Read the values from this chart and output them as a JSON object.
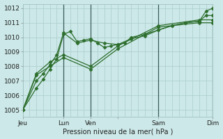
{
  "background_color": "#cce8e8",
  "grid_color": "#aacccc",
  "line_color": "#2d6e2d",
  "marker": "D",
  "marker_size": 2.5,
  "title": "Pression niveau de la mer( hPa )",
  "ylim": [
    1004.5,
    1012.3
  ],
  "yticks": [
    1005,
    1006,
    1007,
    1008,
    1009,
    1010,
    1011,
    1012
  ],
  "xtick_positions": [
    0,
    36,
    60,
    84,
    120,
    168
  ],
  "xtick_labels": [
    "Jeu",
    "Lun",
    "Ven",
    "",
    "Sam",
    "Dim"
  ],
  "vline_color": "#3a5a5a",
  "vline_positions": [
    36,
    60,
    120,
    168
  ],
  "series": [
    [
      [
        0,
        12,
        18,
        24,
        30,
        36,
        42,
        48,
        54,
        60,
        66,
        72,
        78,
        84,
        90,
        96,
        108,
        120,
        132,
        144,
        156,
        162,
        168
      ],
      [
        1005.0,
        1006.5,
        1007.1,
        1007.8,
        1008.5,
        1010.2,
        1010.4,
        1009.7,
        1009.8,
        1009.9,
        1009.6,
        1009.3,
        1009.4,
        1009.5,
        1009.6,
        1010.0,
        1010.2,
        1010.5,
        1010.8,
        1011.0,
        1011.1,
        1011.8,
        1012.0
      ]
    ],
    [
      [
        0,
        12,
        18,
        24,
        30,
        36,
        48,
        60,
        72,
        84,
        96,
        108,
        120,
        132,
        144,
        156,
        162,
        168
      ],
      [
        1005.0,
        1007.0,
        1007.5,
        1008.1,
        1008.8,
        1010.3,
        1009.6,
        1009.8,
        1009.6,
        1009.5,
        1009.9,
        1010.1,
        1010.5,
        1010.8,
        1011.0,
        1011.1,
        1011.5,
        1011.5
      ]
    ],
    [
      [
        0,
        12,
        24,
        36,
        60,
        84,
        120,
        156,
        168
      ],
      [
        1005.0,
        1007.5,
        1008.3,
        1008.8,
        1008.0,
        1009.4,
        1010.8,
        1011.2,
        1011.2
      ]
    ],
    [
      [
        0,
        12,
        24,
        36,
        60,
        84,
        120,
        156,
        168
      ],
      [
        1005.0,
        1007.4,
        1008.0,
        1008.6,
        1007.8,
        1009.2,
        1010.7,
        1011.0,
        1011.0
      ]
    ]
  ]
}
